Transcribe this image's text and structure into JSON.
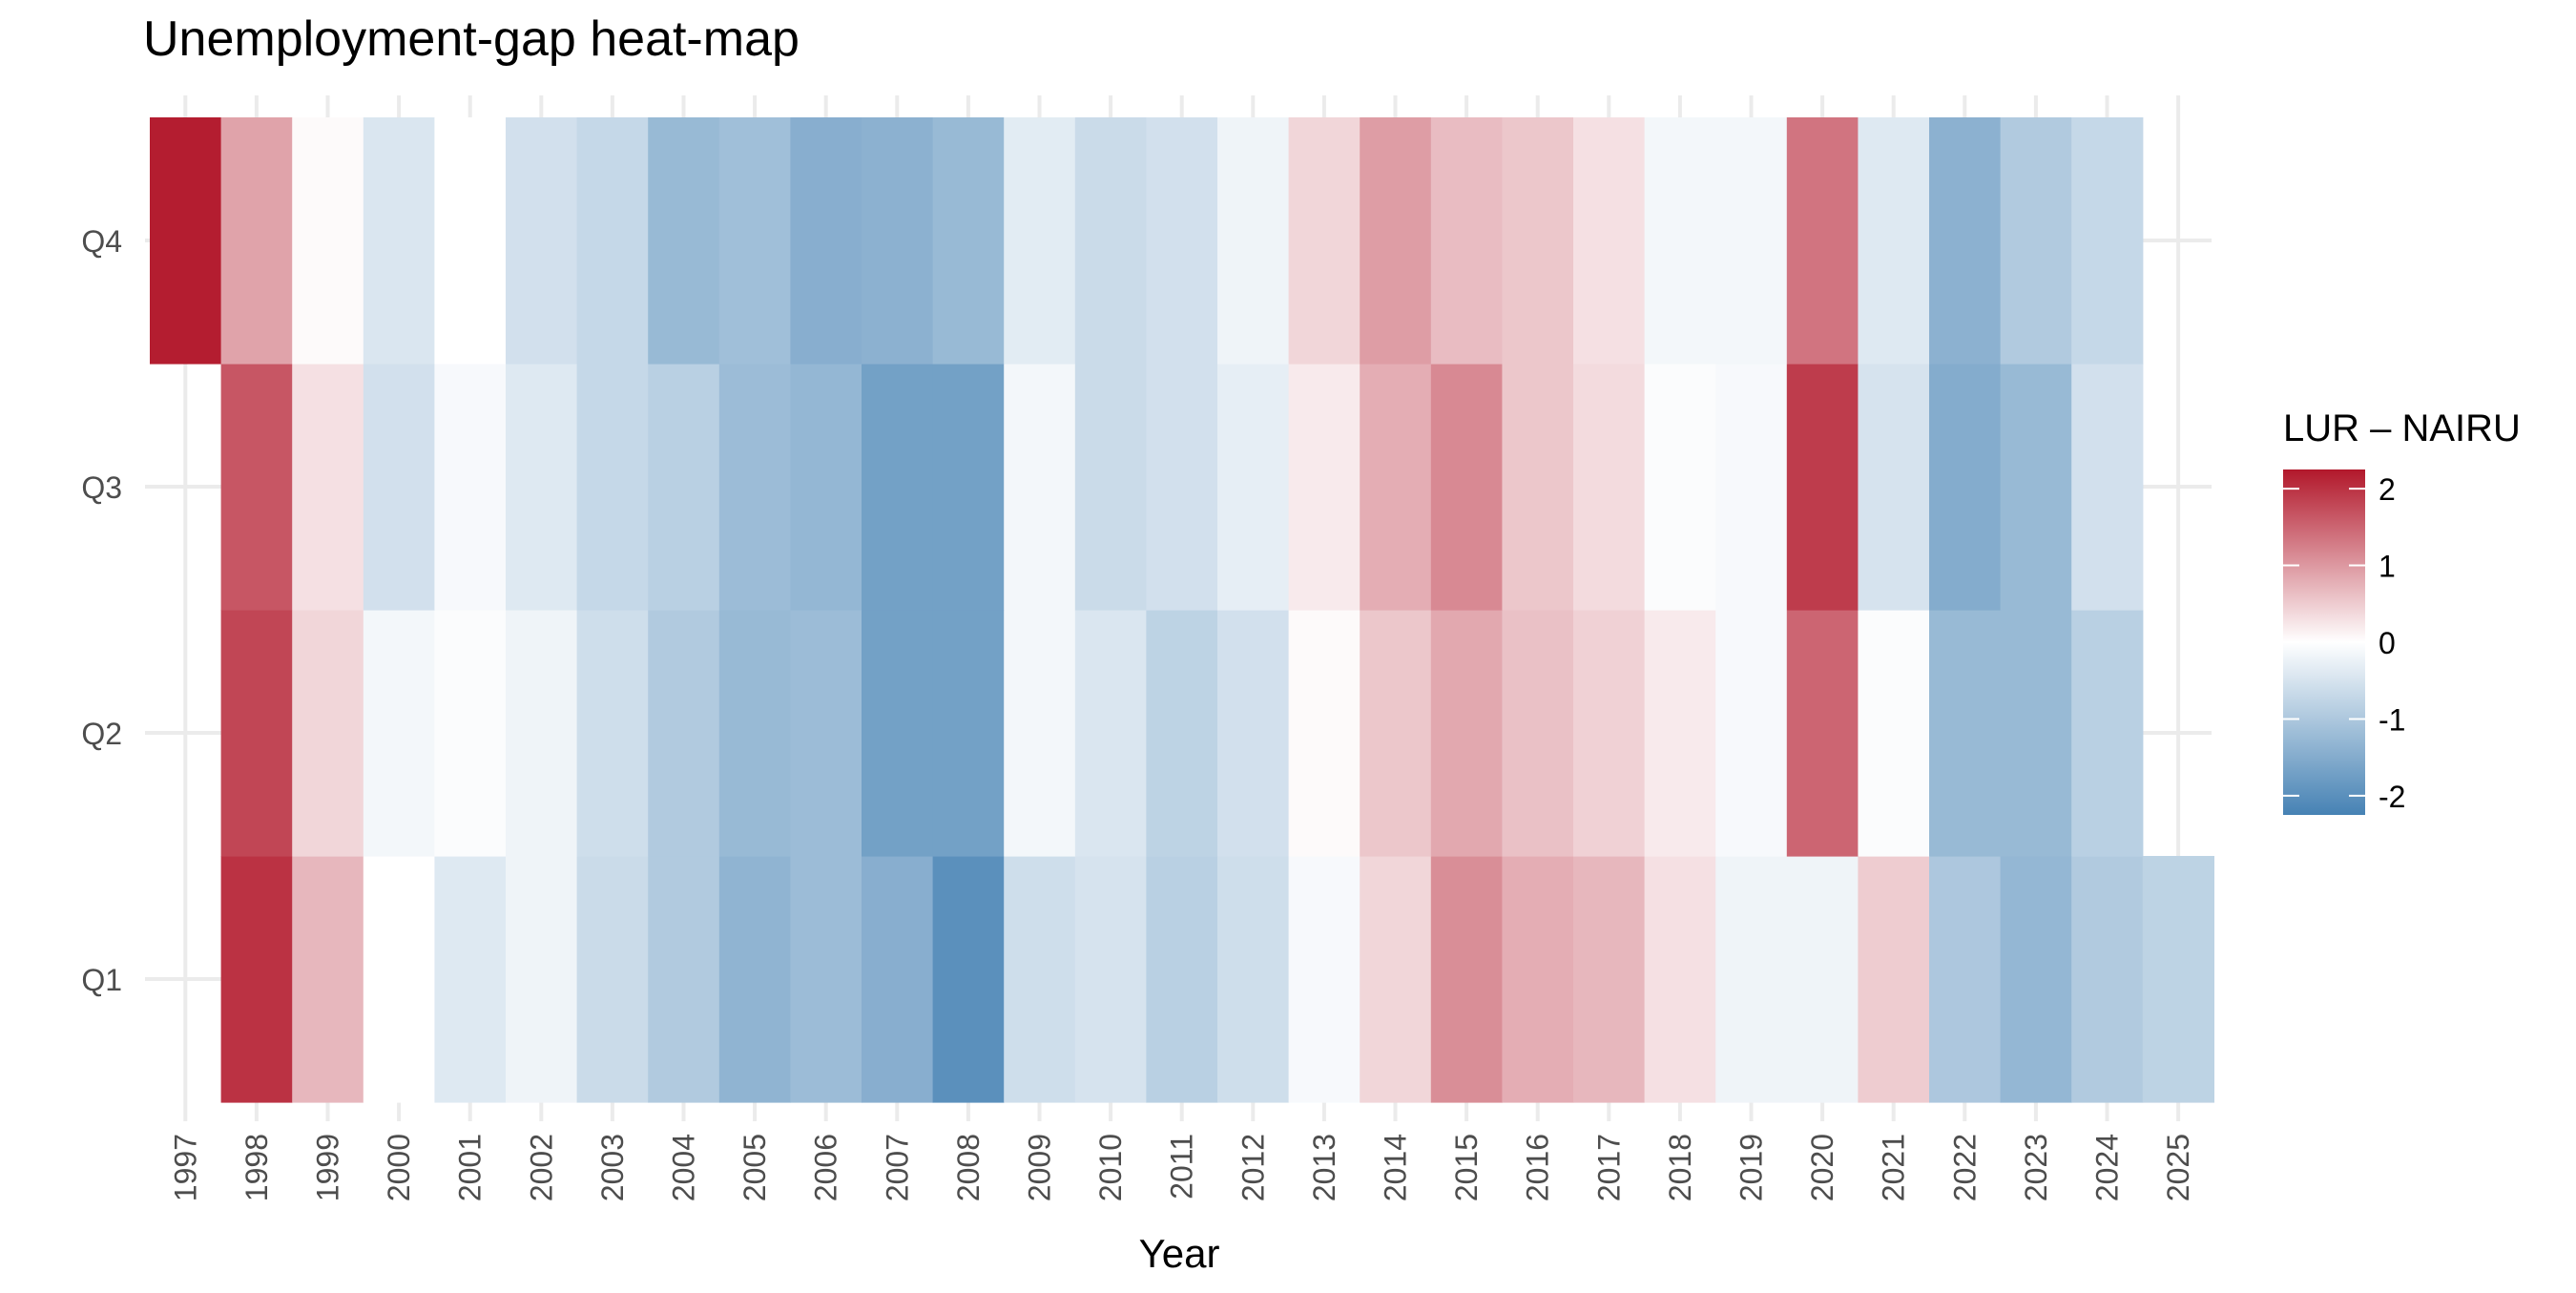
{
  "chart_data": {
    "type": "heatmap",
    "title": "Unemployment-gap heat-map",
    "xlabel": "Year",
    "ylabel": "",
    "x": [
      "1997",
      "1998",
      "1999",
      "2000",
      "2001",
      "2002",
      "2003",
      "2004",
      "2005",
      "2006",
      "2007",
      "2008",
      "2009",
      "2010",
      "2011",
      "2012",
      "2013",
      "2014",
      "2015",
      "2016",
      "2017",
      "2018",
      "2019",
      "2020",
      "2021",
      "2022",
      "2023",
      "2024",
      "2025"
    ],
    "y": [
      "Q1",
      "Q2",
      "Q3",
      "Q4"
    ],
    "values": {
      "Q1": [
        null,
        2.0,
        0.7,
        0.0,
        -0.4,
        -0.2,
        -0.65,
        -0.95,
        -1.35,
        -1.2,
        -1.45,
        -2.0,
        -0.6,
        -0.5,
        -0.85,
        -0.6,
        -0.1,
        0.4,
        1.1,
        0.8,
        0.7,
        0.3,
        -0.2,
        -0.2,
        0.5,
        -1.0,
        -1.3,
        -0.95,
        -0.8
      ],
      "Q2": [
        null,
        1.8,
        0.4,
        -0.15,
        -0.05,
        -0.2,
        -0.6,
        -0.95,
        -1.25,
        -1.2,
        -1.7,
        -1.7,
        -0.15,
        -0.45,
        -0.8,
        -0.55,
        0.05,
        0.55,
        0.85,
        0.6,
        0.45,
        0.2,
        -0.1,
        1.5,
        -0.05,
        -1.25,
        -1.25,
        -0.85,
        null
      ],
      "Q3": [
        null,
        1.65,
        0.3,
        -0.55,
        -0.1,
        -0.4,
        -0.7,
        -0.85,
        -1.2,
        -1.3,
        -1.7,
        -1.7,
        -0.15,
        -0.65,
        -0.55,
        -0.3,
        0.2,
        0.8,
        1.15,
        0.55,
        0.35,
        -0.05,
        -0.1,
        1.9,
        -0.5,
        -1.5,
        -1.25,
        -0.55,
        null
      ],
      "Q4": [
        2.2,
        0.9,
        0.05,
        -0.45,
        0.0,
        -0.55,
        -0.7,
        -1.25,
        -1.15,
        -1.45,
        -1.4,
        -1.25,
        -0.35,
        -0.65,
        -0.55,
        -0.2,
        0.4,
        0.95,
        0.65,
        0.55,
        0.3,
        -0.15,
        -0.15,
        1.35,
        -0.4,
        -1.4,
        -0.95,
        -0.7,
        null
      ]
    },
    "legend": {
      "title": "LUR – NAIRU",
      "ticks": [
        "2",
        "1",
        "0",
        "-1",
        "-2"
      ],
      "tick_values": [
        2,
        1,
        0,
        -1,
        -2
      ],
      "range": [
        -2.25,
        2.25
      ],
      "placement": "right"
    },
    "color_scale": {
      "low": "#4682b4",
      "mid": "#ffffff",
      "high": "#b2182b"
    },
    "grid": true
  }
}
